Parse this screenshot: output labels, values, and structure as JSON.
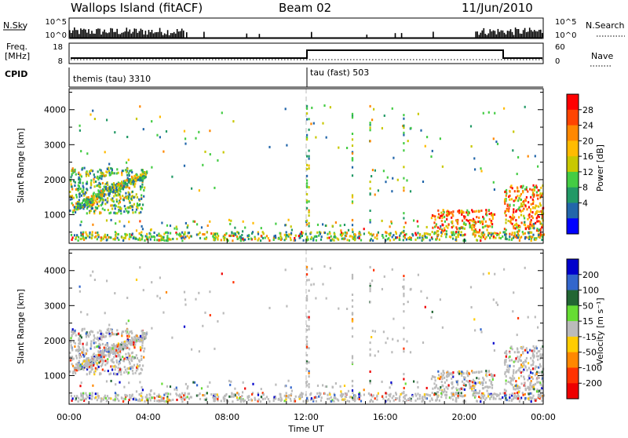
{
  "header": {
    "station": "Wallops Island (fitACF)",
    "beam": "Beam 02",
    "date": "11/Jun/2010"
  },
  "strip_labels": {
    "nsky": "N.Sky",
    "nsearch": "N.Search",
    "freq_line1": "Freq.",
    "freq_line2": "[MHz]",
    "nave": "Nave",
    "cpid": "CPID"
  },
  "strip_ticks": {
    "nsky_left": [
      "10^5",
      "10^0"
    ],
    "nsky_right": [
      "10^5",
      "10^0"
    ],
    "freq_left": [
      "18",
      "8"
    ],
    "nave_right": [
      "60",
      "0"
    ]
  },
  "cpid_segments": [
    {
      "name": "themis (tau) 3310",
      "start_hour": 0
    },
    {
      "name": "tau (fast) 503",
      "start_hour": 12
    }
  ],
  "chart_data": [
    {
      "type": "heatmap",
      "panel": "power",
      "ylabel": "Slant Range [km]",
      "yticks": [
        1000,
        2000,
        3000,
        4000
      ],
      "ylim": [
        180,
        4600
      ],
      "xlim_hours": [
        0,
        24
      ],
      "colorbar": {
        "label": "Power [dB]",
        "ticks": [
          "28",
          "24",
          "20",
          "16",
          "12",
          "8",
          "4"
        ],
        "colors": [
          "#ff0000",
          "#ff4400",
          "#ff8800",
          "#ffbb00",
          "#c8c800",
          "#44cc44",
          "#229966",
          "#2266aa",
          "#0000ff"
        ]
      },
      "features": [
        {
          "hour_start": 0.0,
          "hour_end": 3.8,
          "range_start": 1000,
          "range_end": 2300,
          "level": "medium"
        },
        {
          "hour_start": 0.8,
          "hour_end": 1.8,
          "range_start": 1150,
          "range_end": 1450,
          "level": "high"
        },
        {
          "hour_start": 18.3,
          "hour_end": 21.5,
          "range_start": 400,
          "range_end": 1100,
          "level": "high"
        },
        {
          "hour_start": 22.0,
          "hour_end": 24.0,
          "range_start": 300,
          "range_end": 1800,
          "level": "high"
        }
      ]
    },
    {
      "type": "heatmap",
      "panel": "velocity",
      "xlabel": "Time UT",
      "ylabel": "Slant Range [km]",
      "yticks": [
        1000,
        2000,
        3000,
        4000
      ],
      "ylim": [
        180,
        4600
      ],
      "xlim_hours": [
        0,
        24
      ],
      "xticks": [
        "00:00",
        "04:00",
        "08:00",
        "12:00",
        "16:00",
        "20:00",
        "00:00"
      ],
      "colorbar": {
        "label": "Velocity [m s⁻¹]",
        "ticks": [
          "200",
          "100",
          "50",
          "15",
          "-15",
          "-50",
          "-100",
          "-200"
        ],
        "colors": [
          "#0000cc",
          "#3366cc",
          "#226633",
          "#66dd33",
          "#bbbbbb",
          "#ffcc00",
          "#ff8800",
          "#ff3300",
          "#ee0000"
        ]
      }
    }
  ]
}
